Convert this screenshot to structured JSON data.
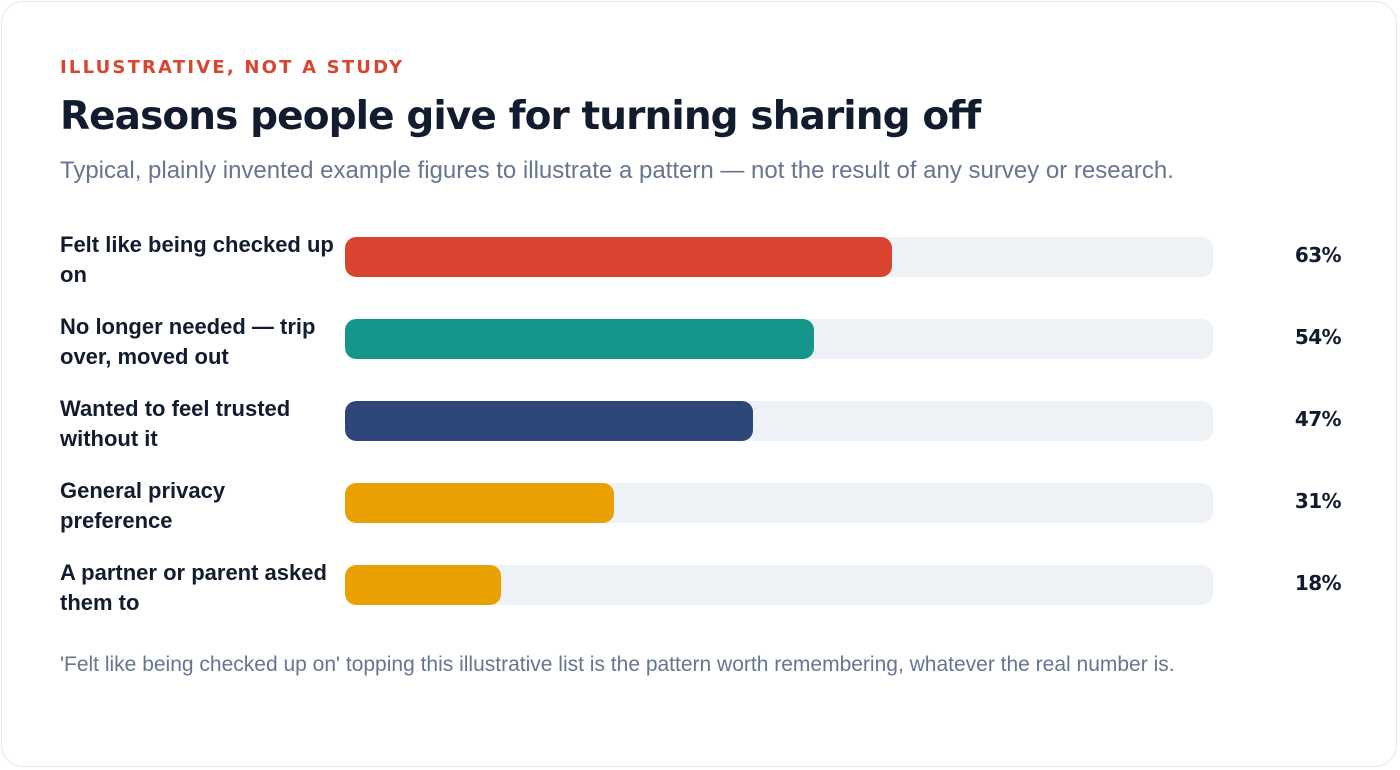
{
  "card": {
    "eyebrow": "ILLUSTRATIVE, NOT A STUDY",
    "title": "Reasons people give for turning sharing off",
    "subtitle": "Typical, plainly invented example figures to illustrate a pattern — not the result of any survey or research.",
    "footnote": "'Felt like being checked up on' topping this illustrative list is the pattern worth remembering, whatever the real number is."
  },
  "colors": {
    "eyebrow": "#d9452f",
    "track": "#eef1f5"
  },
  "chart_data": {
    "type": "bar",
    "orientation": "horizontal",
    "title": "Reasons people give for turning sharing off",
    "subtitle": "Typical, plainly invented example figures to illustrate a pattern — not the result of any survey or research.",
    "categories": [
      "Felt like being checked up on",
      "No longer needed — trip over, moved out",
      "Wanted to feel trusted without it",
      "General privacy preference",
      "A partner or parent asked them to"
    ],
    "values": [
      63,
      54,
      47,
      31,
      18
    ],
    "value_labels": [
      "63%",
      "54%",
      "47%",
      "31%",
      "18%"
    ],
    "unit": "%",
    "xlim": [
      0,
      100
    ],
    "colors": [
      "#d9432f",
      "#14968a",
      "#2e4678",
      "#e8a100",
      "#e8a100"
    ],
    "grid": false,
    "legend": "none"
  }
}
